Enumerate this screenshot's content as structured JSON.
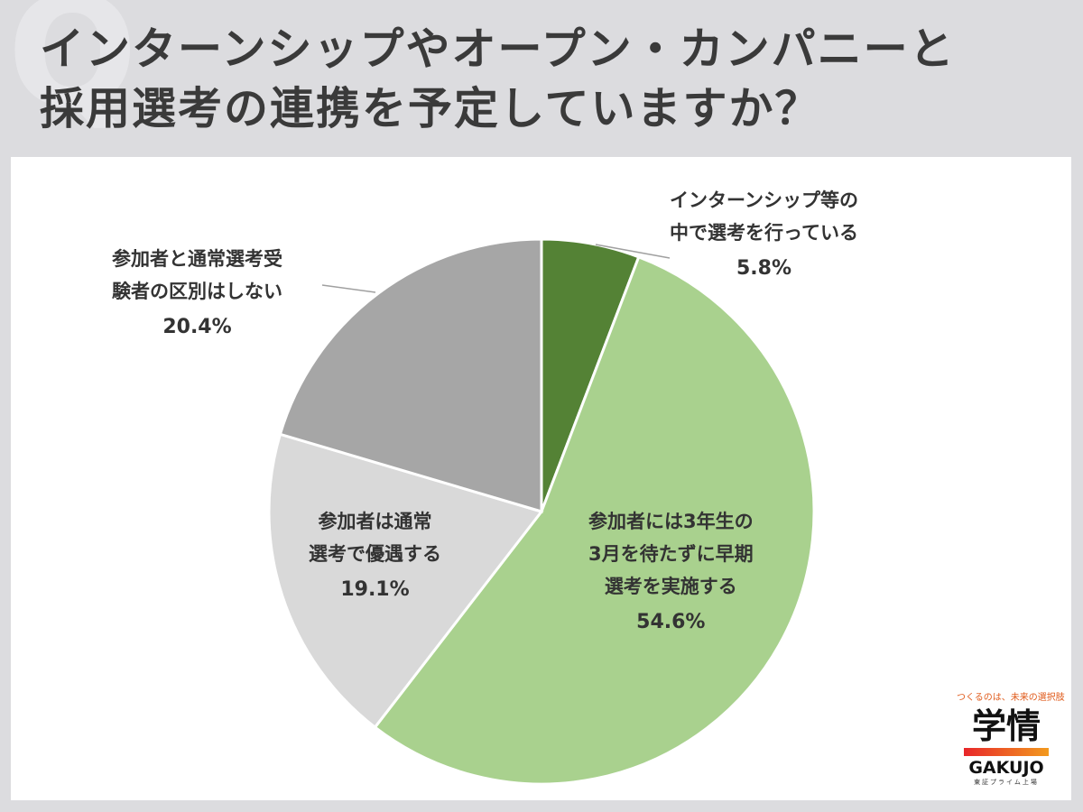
{
  "title": {
    "line1": "インターンシップやオープン・カンパニーと",
    "line2": "採用選考の連携を予定していますか？"
  },
  "chart_data": {
    "type": "pie",
    "slices": [
      {
        "lines": [
          "インターンシップ等の",
          "中で選考を行っている"
        ],
        "value": 5.8,
        "pct": "5.8%",
        "color": "#548235"
      },
      {
        "lines": [
          "参加者には3年生の",
          "3月を待たずに早期",
          "選考を実施する"
        ],
        "value": 54.6,
        "pct": "54.6%",
        "color": "#a9d18e"
      },
      {
        "lines": [
          "参加者は通常",
          "選考で優遇する"
        ],
        "value": 19.1,
        "pct": "19.1%",
        "color": "#d9d9d9"
      },
      {
        "lines": [
          "参加者と通常選考受",
          "験者の区別はしない"
        ],
        "value": 20.4,
        "pct": "20.4%",
        "color": "#a6a6a6"
      }
    ]
  },
  "logo": {
    "tagline": "つくるのは、未来の選択肢",
    "mark": "学情",
    "brand": "GAKUJO",
    "sub": "東証プライム上場"
  }
}
